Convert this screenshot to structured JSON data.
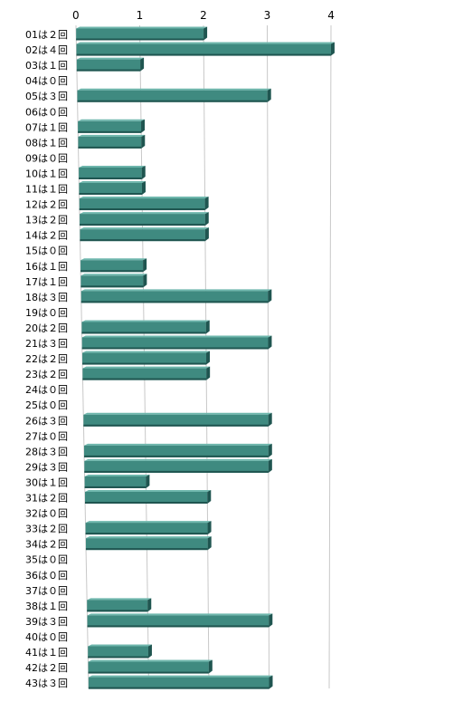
{
  "chart_data": {
    "type": "bar",
    "orientation": "horizontal",
    "title": "",
    "xlabel": "",
    "ylabel": "",
    "xlim": [
      0,
      4
    ],
    "xticks": [
      0,
      1,
      2,
      3,
      4
    ],
    "grid": true,
    "colors": {
      "bar": "#3f8a80",
      "bar_top": "#6fb7ad",
      "bar_side": "#1f5550",
      "grid": "#c8c8c8"
    },
    "categories": [
      "01は２回",
      "02は４回",
      "03は１回",
      "04は０回",
      "05は３回",
      "06は０回",
      "07は１回",
      "08は１回",
      "09は０回",
      "10は１回",
      "11は１回",
      "12は２回",
      "13は２回",
      "14は２回",
      "15は０回",
      "16は１回",
      "17は１回",
      "18は３回",
      "19は０回",
      "20は２回",
      "21は３回",
      "22は２回",
      "23は２回",
      "24は０回",
      "25は０回",
      "26は３回",
      "27は０回",
      "28は３回",
      "29は３回",
      "30は１回",
      "31は２回",
      "32は０回",
      "33は２回",
      "34は２回",
      "35は０回",
      "36は０回",
      "37は０回",
      "38は１回",
      "39は３回",
      "40は０回",
      "41は１回",
      "42は２回",
      "43は３回"
    ],
    "values": [
      2,
      4,
      1,
      0,
      3,
      0,
      1,
      1,
      0,
      1,
      1,
      2,
      2,
      2,
      0,
      1,
      1,
      3,
      0,
      2,
      3,
      2,
      2,
      0,
      0,
      3,
      0,
      3,
      3,
      1,
      2,
      0,
      2,
      2,
      0,
      0,
      0,
      1,
      3,
      0,
      1,
      2,
      3
    ]
  }
}
